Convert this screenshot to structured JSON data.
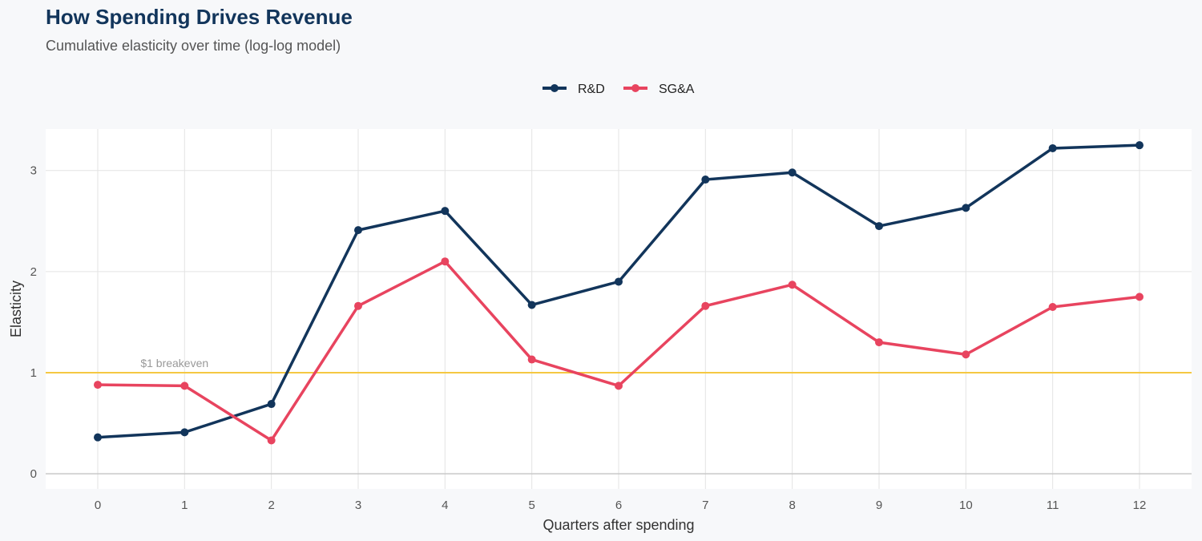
{
  "chart_data": {
    "type": "line",
    "title": "How Spending Drives Revenue",
    "subtitle": "Cumulative elasticity over time (log-log model)",
    "xlabel": "Quarters after spending",
    "ylabel": "Elasticity",
    "x": [
      0,
      1,
      2,
      3,
      4,
      5,
      6,
      7,
      8,
      9,
      10,
      11,
      12
    ],
    "xlim": [
      -0.6,
      12.6
    ],
    "ylim": [
      -0.15,
      3.41
    ],
    "yticks": [
      0,
      1,
      2,
      3
    ],
    "grid": true,
    "legend_position": "top",
    "series": [
      {
        "name": "R&D",
        "color": "#12355b",
        "values": [
          0.36,
          0.41,
          0.69,
          2.41,
          2.6,
          1.67,
          1.9,
          2.91,
          2.98,
          2.45,
          2.63,
          3.22,
          3.25
        ]
      },
      {
        "name": "SG&A",
        "color": "#e8445f",
        "values": [
          0.88,
          0.87,
          0.33,
          1.66,
          2.1,
          1.13,
          0.87,
          1.66,
          1.87,
          1.3,
          1.18,
          1.65,
          1.75
        ]
      }
    ],
    "reference_line": {
      "y": 1,
      "label": "$1 breakeven",
      "color": "#f5c842"
    }
  }
}
